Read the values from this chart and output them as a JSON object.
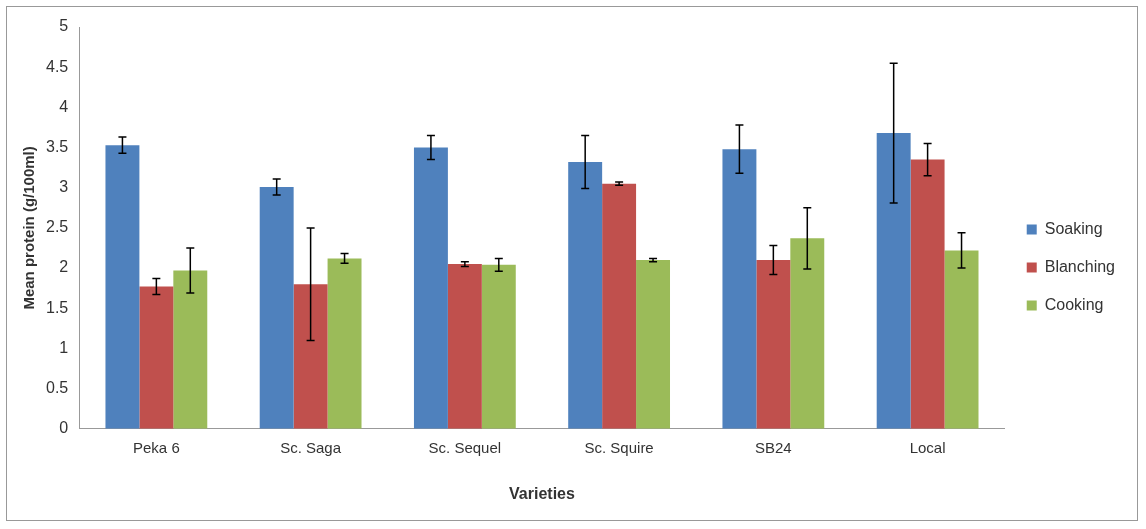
{
  "chart_data": {
    "type": "bar",
    "xlabel": "Varieties",
    "ylabel": "Mean protein (g/100ml)",
    "categories": [
      "Peka 6",
      "Sc. Saga",
      "Sc. Sequel",
      "Sc. Squire",
      "SB24",
      "Local"
    ],
    "series": [
      {
        "name": "Soaking",
        "color": "#4f81bd",
        "values": [
          3.53,
          3.01,
          3.5,
          3.32,
          3.48,
          3.68
        ],
        "errors": [
          0.1,
          0.1,
          0.15,
          0.33,
          0.3,
          0.87
        ]
      },
      {
        "name": "Blanching",
        "color": "#c0504d",
        "values": [
          1.77,
          1.8,
          2.05,
          3.05,
          2.1,
          3.35
        ],
        "errors": [
          0.1,
          0.7,
          0.03,
          0.02,
          0.18,
          0.2
        ]
      },
      {
        "name": "Cooking",
        "color": "#9bbb59",
        "values": [
          1.97,
          2.12,
          2.04,
          2.1,
          2.37,
          2.22
        ],
        "errors": [
          0.28,
          0.06,
          0.08,
          0.02,
          0.38,
          0.22
        ]
      }
    ],
    "ylim": [
      0,
      5
    ],
    "yticks": [
      0,
      0.5,
      1,
      1.5,
      2,
      2.5,
      3,
      3.5,
      4,
      4.5,
      5
    ],
    "grid": false,
    "legend": "right"
  }
}
